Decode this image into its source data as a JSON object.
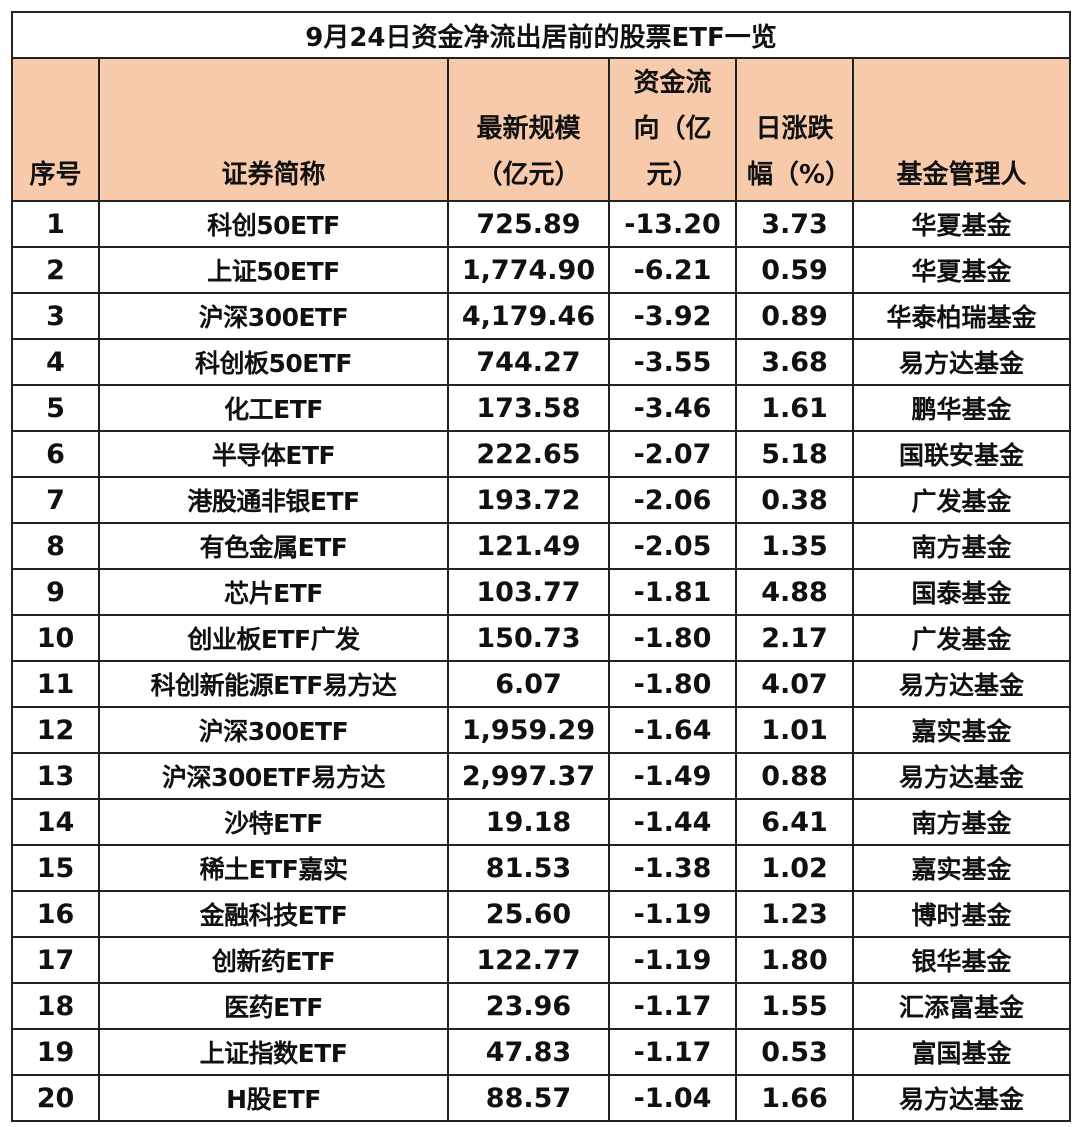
{
  "title": "9月24日资金净流出居前的股票ETF一览",
  "header_color": "#f7caac",
  "chart_data": {
    "type": "table",
    "title": "9月24日资金净流出居前的股票ETF一览",
    "columns": [
      "序号",
      "证券简称",
      "最新规模（亿元）",
      "资金流向（亿元）",
      "日涨跌幅（%）",
      "基金管理人"
    ],
    "rows": [
      [
        "1",
        "科创50ETF",
        "725.89",
        "-13.20",
        "3.73",
        "华夏基金"
      ],
      [
        "2",
        "上证50ETF",
        "1,774.90",
        "-6.21",
        "0.59",
        "华夏基金"
      ],
      [
        "3",
        "沪深300ETF",
        "4,179.46",
        "-3.92",
        "0.89",
        "华泰柏瑞基金"
      ],
      [
        "4",
        "科创板50ETF",
        "744.27",
        "-3.55",
        "3.68",
        "易方达基金"
      ],
      [
        "5",
        "化工ETF",
        "173.58",
        "-3.46",
        "1.61",
        "鹏华基金"
      ],
      [
        "6",
        "半导体ETF",
        "222.65",
        "-2.07",
        "5.18",
        "国联安基金"
      ],
      [
        "7",
        "港股通非银ETF",
        "193.72",
        "-2.06",
        "0.38",
        "广发基金"
      ],
      [
        "8",
        "有色金属ETF",
        "121.49",
        "-2.05",
        "1.35",
        "南方基金"
      ],
      [
        "9",
        "芯片ETF",
        "103.77",
        "-1.81",
        "4.88",
        "国泰基金"
      ],
      [
        "10",
        "创业板ETF广发",
        "150.73",
        "-1.80",
        "2.17",
        "广发基金"
      ],
      [
        "11",
        "科创新能源ETF易方达",
        "6.07",
        "-1.80",
        "4.07",
        "易方达基金"
      ],
      [
        "12",
        "沪深300ETF",
        "1,959.29",
        "-1.64",
        "1.01",
        "嘉实基金"
      ],
      [
        "13",
        "沪深300ETF易方达",
        "2,997.37",
        "-1.49",
        "0.88",
        "易方达基金"
      ],
      [
        "14",
        "沙特ETF",
        "19.18",
        "-1.44",
        "6.41",
        "南方基金"
      ],
      [
        "15",
        "稀土ETF嘉实",
        "81.53",
        "-1.38",
        "1.02",
        "嘉实基金"
      ],
      [
        "16",
        "金融科技ETF",
        "25.60",
        "-1.19",
        "1.23",
        "博时基金"
      ],
      [
        "17",
        "创新药ETF",
        "122.77",
        "-1.19",
        "1.80",
        "银华基金"
      ],
      [
        "18",
        "医药ETF",
        "23.96",
        "-1.17",
        "1.55",
        "汇添富基金"
      ],
      [
        "19",
        "上证指数ETF",
        "47.83",
        "-1.17",
        "0.53",
        "富国基金"
      ],
      [
        "20",
        "H股ETF",
        "88.57",
        "-1.04",
        "1.66",
        "易方达基金"
      ]
    ]
  }
}
